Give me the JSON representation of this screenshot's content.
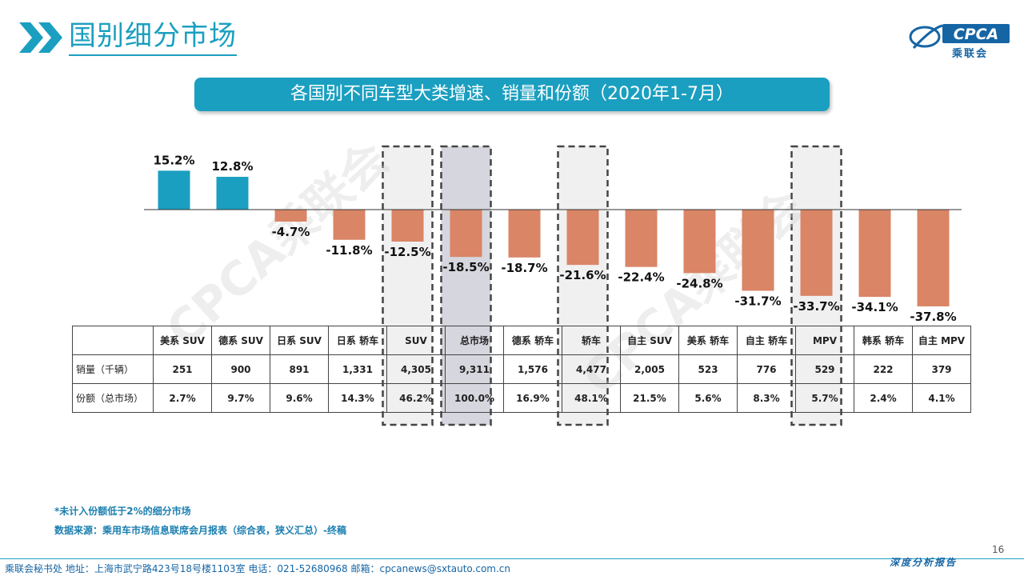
{
  "header": {
    "title": "国别细分市场"
  },
  "logo": {
    "text": "CPCA",
    "subtitle": "乘联会"
  },
  "banner": {
    "title": "各国别不同车型大类增速、销量和份额（2020年1-7月）"
  },
  "chart_data": {
    "type": "bar",
    "categories": [
      "美系 SUV",
      "德系 SUV",
      "日系 SUV",
      "日系 轿车",
      "SUV",
      "总市场",
      "德系 轿车",
      "轿车",
      "自主 SUV",
      "美系 轿车",
      "自主 轿车",
      "MPV",
      "韩系 轿车",
      "自主 MPV"
    ],
    "values": [
      15.2,
      12.8,
      -4.7,
      -11.8,
      -12.5,
      -18.5,
      -18.7,
      -21.6,
      -22.4,
      -24.8,
      -31.7,
      -33.7,
      -34.1,
      -37.8
    ],
    "value_labels": [
      "15.2%",
      "12.8%",
      "-4.7%",
      "-11.8%",
      "-12.5%",
      "-18.5%",
      "-18.7%",
      "-21.6%",
      "-22.4%",
      "-24.8%",
      "-31.7%",
      "-33.7%",
      "-34.1%",
      "-37.8%"
    ],
    "highlighted": [
      "SUV",
      "轿车",
      "MPV"
    ],
    "highlighted_total": "总市场",
    "colors": {
      "positive": "#1b9fc0",
      "negative": "#d98566"
    },
    "watermark": "CPCA乘联会"
  },
  "table": {
    "rows": [
      {
        "label": "销量（千辆）",
        "values": [
          "251",
          "900",
          "891",
          "1,331",
          "4,305",
          "9,311",
          "1,576",
          "4,477",
          "2,005",
          "523",
          "776",
          "529",
          "222",
          "379"
        ]
      },
      {
        "label": "份额（总市场）",
        "values": [
          "2.7%",
          "9.7%",
          "9.6%",
          "14.3%",
          "46.2%",
          "100.0%",
          "16.9%",
          "48.1%",
          "21.5%",
          "5.6%",
          "8.3%",
          "5.7%",
          "2.4%",
          "4.1%"
        ]
      }
    ]
  },
  "footnotes": {
    "note1": "*未计入份额低于2%的细分市场",
    "note2": "数据来源：乘用车市场信息联席会月报表（综合表，狭义汇总）-终稿"
  },
  "page_number": "16",
  "footer": {
    "text": "乘联会秘书处   地址：上海市武宁路423号18号楼1103室   电话：021-52680968   邮箱：cpcanews@sxtauto.com.cn",
    "tag": "深度分析报告"
  }
}
